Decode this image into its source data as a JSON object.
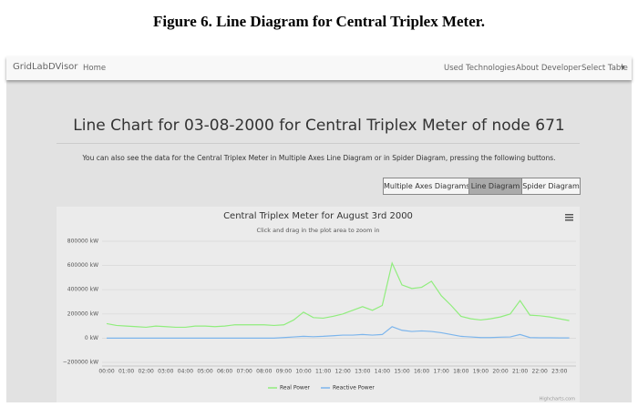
{
  "figure_caption": "Figure 6. Line Diagram for Central Triplex Meter.",
  "navbar": {
    "brand": "GridLabDVisor",
    "links": [
      "Home"
    ],
    "right_links": [
      "Used Technologies",
      "About Developer",
      "Select Table"
    ]
  },
  "heading": "Line Chart for 03-08-2000 for Central Triplex Meter of node 671",
  "description": "You can also see the data for the Central Triplex Meter in Multiple Axes Line Diagram or in Spider Diagram, pressing the following buttons.",
  "buttons": [
    {
      "label": "Multiple Axes Diagrams",
      "active": false
    },
    {
      "label": "Line Diagram",
      "active": true
    },
    {
      "label": "Spider Diagram",
      "active": false
    }
  ],
  "chart_data": {
    "type": "line",
    "title": "Central Triplex Meter for August 3rd 2000",
    "subtitle": "Click and drag in the plot area to zoom in",
    "categories": [
      "00:00",
      null,
      "01:00",
      null,
      "02:00",
      null,
      "03:00",
      null,
      "04:00",
      null,
      "05:00",
      null,
      "06:00",
      null,
      "07:00",
      null,
      "08:00",
      null,
      "09:00",
      null,
      "10:00",
      null,
      "11:00",
      null,
      "12:00",
      null,
      "13:00",
      null,
      "14:00",
      null,
      "15:00",
      null,
      "16:00",
      null,
      "17:00",
      null,
      "18:00",
      null,
      "19:00",
      null,
      "20:00",
      null,
      "21:00",
      null,
      "22:00",
      null,
      "23:00",
      null
    ],
    "series": [
      {
        "name": "Real Power",
        "color": "#90ed7d",
        "values": [
          120000,
          105000,
          100000,
          95000,
          90000,
          100000,
          95000,
          90000,
          90000,
          100000,
          100000,
          95000,
          100000,
          110000,
          110000,
          110000,
          110000,
          105000,
          110000,
          150000,
          215000,
          170000,
          165000,
          180000,
          200000,
          230000,
          260000,
          230000,
          270000,
          620000,
          440000,
          410000,
          420000,
          470000,
          350000,
          270000,
          180000,
          160000,
          150000,
          160000,
          175000,
          200000,
          310000,
          190000,
          185000,
          175000,
          160000,
          145000
        ]
      },
      {
        "name": "Reactive Power",
        "color": "#7cb5ec",
        "values": [
          0,
          0,
          0,
          0,
          0,
          0,
          0,
          0,
          0,
          0,
          0,
          0,
          0,
          0,
          0,
          0,
          0,
          0,
          5000,
          10000,
          15000,
          12000,
          15000,
          20000,
          25000,
          25000,
          30000,
          25000,
          30000,
          95000,
          65000,
          55000,
          60000,
          55000,
          45000,
          30000,
          15000,
          10000,
          5000,
          5000,
          8000,
          10000,
          30000,
          5000,
          3000,
          3000,
          2000,
          2000
        ]
      }
    ],
    "ylim": [
      -200000,
      800000
    ],
    "yticks": [
      {
        "value": -200000,
        "label": "−200000 kW"
      },
      {
        "value": 0,
        "label": "0 kW"
      },
      {
        "value": 200000,
        "label": "200000 kW"
      },
      {
        "value": 400000,
        "label": "400000 kW"
      },
      {
        "value": 600000,
        "label": "600000 kW"
      },
      {
        "value": 800000,
        "label": "800000 kW"
      }
    ],
    "grid": true,
    "credits": "Highcharts.com"
  }
}
